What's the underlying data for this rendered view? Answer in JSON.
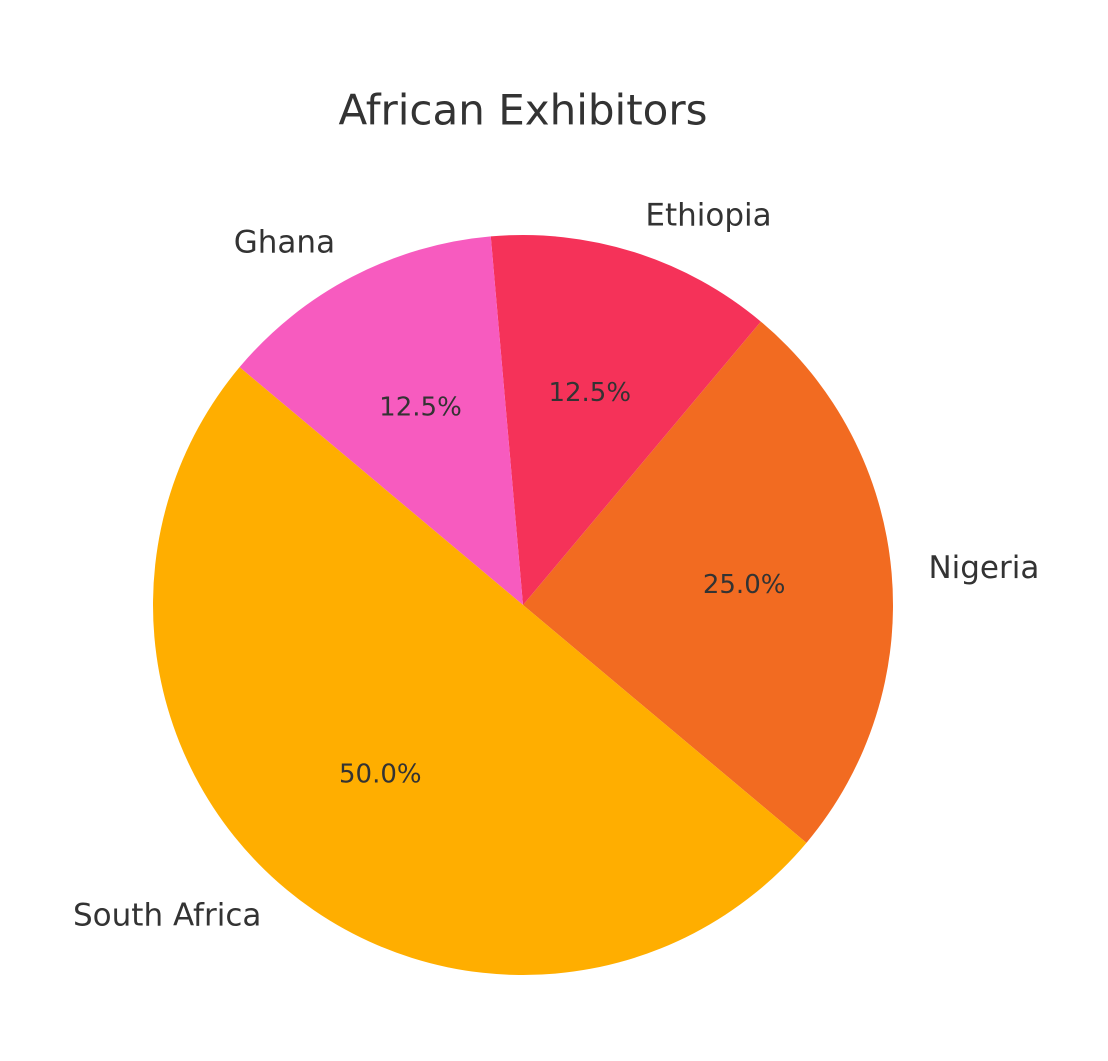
{
  "chart_data": {
    "type": "pie",
    "title": "African Exhibitors",
    "categories": [
      "Nigeria",
      "Ethiopia",
      "Ghana",
      "South Africa"
    ],
    "values": [
      25,
      12.5,
      12.5,
      50
    ],
    "value_labels": [
      "25.0%",
      "12.5%",
      "12.5%",
      "50.0%"
    ],
    "colors": [
      "#f26b21",
      "#f53259",
      "#f75bbf",
      "#ffae00"
    ]
  }
}
